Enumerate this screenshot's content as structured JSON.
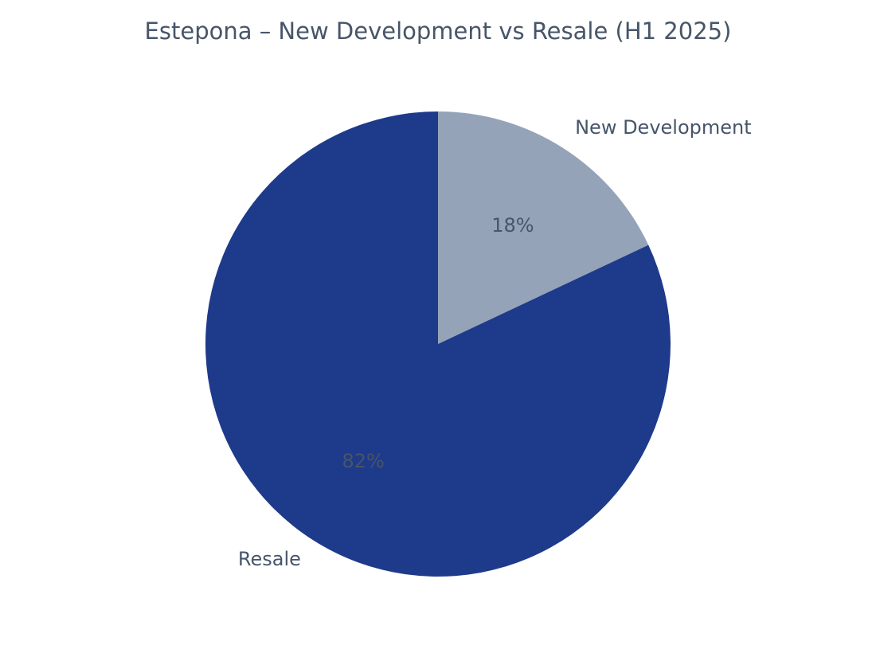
{
  "chart_data": {
    "type": "pie",
    "title": "Estepona – New Development vs Resale (H1 2025)",
    "categories": [
      "New Development",
      "Resale"
    ],
    "values": [
      18,
      82
    ],
    "value_labels": [
      "18%",
      "82%"
    ],
    "colors": [
      "#94a3b8",
      "#1e3a8a"
    ]
  }
}
